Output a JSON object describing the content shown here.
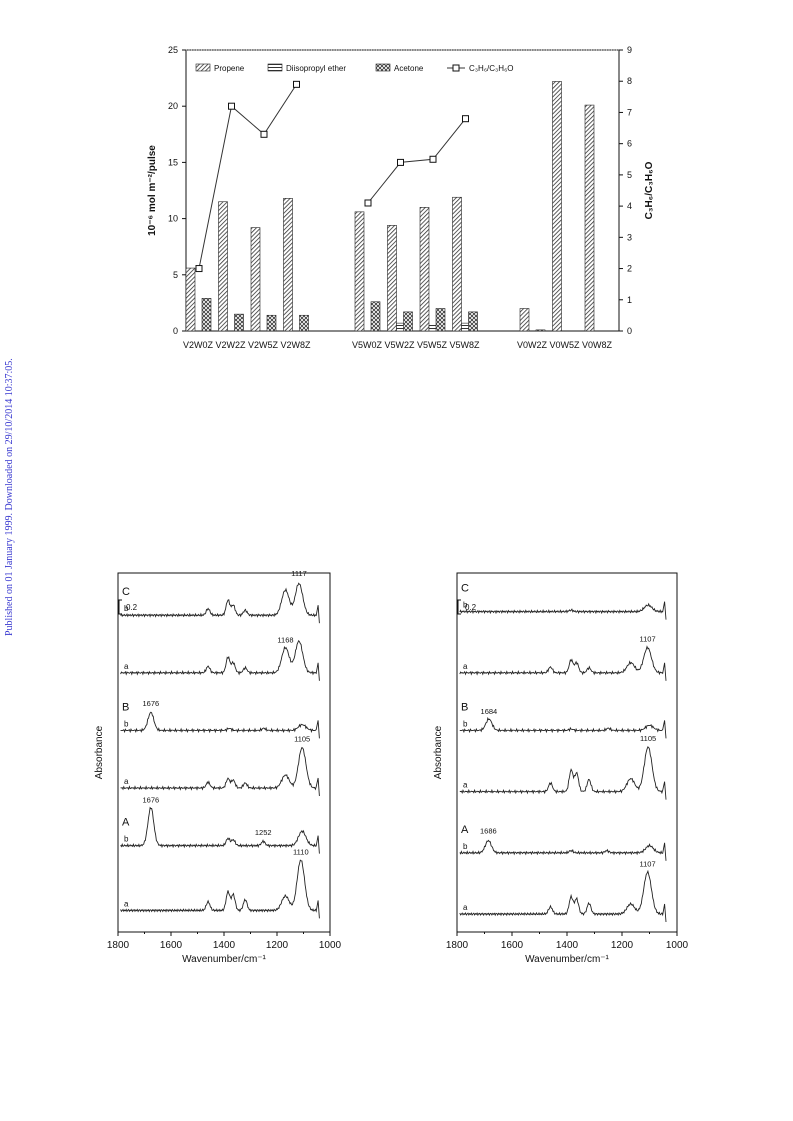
{
  "side_note": "Published on 01 January 1999. Downloaded on 29/10/2014 10:37:05.",
  "chart_data": [
    {
      "type": "bar",
      "ylabel": "10⁻⁶ mol m⁻²/pulse",
      "y2label": "C₃H₆/C₃H₆O",
      "ylim": [
        0,
        25
      ],
      "y2lim": [
        0,
        9
      ],
      "yticks": [
        "0",
        "5",
        "10",
        "15",
        "20",
        "25"
      ],
      "y2ticks": [
        "0",
        "1",
        "2",
        "3",
        "4",
        "5",
        "6",
        "7",
        "8",
        "9"
      ],
      "grid": false,
      "legend_position": "top",
      "categories": [
        "V2W0Z",
        "V2W2Z",
        "V2W5Z",
        "V2W8Z",
        "V5W0Z",
        "V5W2Z",
        "V5W5Z",
        "V5W8Z",
        "V0W2Z",
        "V0W5Z",
        "V0W8Z"
      ],
      "series": [
        {
          "name": "Propene",
          "values": [
            5.6,
            11.5,
            9.2,
            11.8,
            10.6,
            9.4,
            11.0,
            11.9,
            2.0,
            22.2,
            20.1
          ]
        },
        {
          "name": "Diisopropyl ether",
          "values": [
            0,
            0,
            0,
            0,
            0,
            0.7,
            0.5,
            0.7,
            0,
            0,
            0
          ]
        },
        {
          "name": "Acetone",
          "values": [
            2.9,
            1.5,
            1.4,
            1.4,
            2.6,
            1.7,
            2.0,
            1.7,
            0.1,
            0,
            0
          ]
        },
        {
          "name": "C₃H₆/C₃H₆O",
          "axis": "right",
          "type": "line",
          "values": [
            2.0,
            7.2,
            6.3,
            7.9,
            4.1,
            5.4,
            5.5,
            6.8,
            null,
            null,
            null
          ]
        }
      ],
      "line_groups": [
        [
          0,
          1,
          2,
          3
        ],
        [
          4,
          5,
          6,
          7
        ]
      ]
    },
    {
      "type": "line",
      "xlabel": "Wavenumber/cm⁻¹",
      "ylabel": "Absorbance",
      "xlim": [
        1800,
        1000
      ],
      "xticks": [
        "1800",
        "1600",
        "1400",
        "1200",
        "1000"
      ],
      "scale_bar": "0.2",
      "traces": [
        {
          "group": "C",
          "label": "b",
          "offset": 4.4,
          "peaks": [
            [
              1460,
              0.09
            ],
            [
              1385,
              0.21
            ],
            [
              1365,
              0.14
            ],
            [
              1320,
              0.07
            ],
            [
              1168,
              0.35
            ],
            [
              1117,
              0.44
            ]
          ]
        },
        {
          "group": "",
          "label": "a",
          "offset": 3.6,
          "peaks": [
            [
              1460,
              0.09
            ],
            [
              1385,
              0.22
            ],
            [
              1365,
              0.14
            ],
            [
              1320,
              0.07
            ],
            [
              1168,
              0.35
            ],
            [
              1117,
              0.44
            ]
          ]
        },
        {
          "group": "B",
          "label": "b",
          "offset": 2.8,
          "peaks": [
            [
              1676,
              0.25
            ],
            [
              1380,
              0.03
            ],
            [
              1250,
              0.03
            ],
            [
              1105,
              0.08
            ]
          ]
        },
        {
          "group": "",
          "label": "a",
          "offset": 2.0,
          "peaks": [
            [
              1460,
              0.08
            ],
            [
              1385,
              0.13
            ],
            [
              1365,
              0.11
            ],
            [
              1320,
              0.07
            ],
            [
              1168,
              0.18
            ],
            [
              1105,
              0.56
            ]
          ]
        },
        {
          "group": "A",
          "label": "b",
          "offset": 1.2,
          "peaks": [
            [
              1676,
              0.53
            ],
            [
              1385,
              0.1
            ],
            [
              1365,
              0.08
            ],
            [
              1252,
              0.06
            ],
            [
              1105,
              0.2
            ]
          ]
        },
        {
          "group": "",
          "label": "a",
          "offset": 0.3,
          "peaks": [
            [
              1460,
              0.12
            ],
            [
              1385,
              0.26
            ],
            [
              1365,
              0.22
            ],
            [
              1320,
              0.15
            ],
            [
              1168,
              0.2
            ],
            [
              1110,
              0.7
            ]
          ]
        }
      ],
      "annotations": [
        {
          "text": "1117",
          "x": 1117,
          "trace": 0
        },
        {
          "text": "1168",
          "x": 1168,
          "trace": 1
        },
        {
          "text": "1676",
          "x": 1676,
          "trace": 2
        },
        {
          "text": "1105",
          "x": 1105,
          "trace": 3
        },
        {
          "text": "1676",
          "x": 1676,
          "trace": 4
        },
        {
          "text": "1252",
          "x": 1252,
          "trace": 4
        },
        {
          "text": "1110",
          "x": 1110,
          "trace": 5
        }
      ]
    },
    {
      "type": "line",
      "xlabel": "Wavenumber/cm⁻¹",
      "ylabel": "Absorbance",
      "xlim": [
        1800,
        1000
      ],
      "xticks": [
        "1800",
        "1600",
        "1400",
        "1200",
        "1000"
      ],
      "scale_bar": "0.2",
      "traces": [
        {
          "group": "C",
          "label": "b",
          "offset": 4.45,
          "peaks": [
            [
              1385,
              0.02
            ],
            [
              1105,
              0.09
            ]
          ]
        },
        {
          "group": "",
          "label": "a",
          "offset": 3.6,
          "peaks": [
            [
              1460,
              0.08
            ],
            [
              1385,
              0.18
            ],
            [
              1365,
              0.14
            ],
            [
              1320,
              0.07
            ],
            [
              1168,
              0.14
            ],
            [
              1107,
              0.35
            ]
          ]
        },
        {
          "group": "B",
          "label": "b",
          "offset": 2.8,
          "peaks": [
            [
              1684,
              0.16
            ],
            [
              1385,
              0.02
            ],
            [
              1250,
              0.03
            ],
            [
              1100,
              0.07
            ]
          ]
        },
        {
          "group": "",
          "label": "a",
          "offset": 1.95,
          "peaks": [
            [
              1460,
              0.12
            ],
            [
              1385,
              0.3
            ],
            [
              1365,
              0.26
            ],
            [
              1320,
              0.17
            ],
            [
              1168,
              0.18
            ],
            [
              1105,
              0.62
            ]
          ]
        },
        {
          "group": "A",
          "label": "b",
          "offset": 1.1,
          "peaks": [
            [
              1686,
              0.17
            ],
            [
              1385,
              0.03
            ],
            [
              1255,
              0.03
            ],
            [
              1100,
              0.1
            ]
          ]
        },
        {
          "group": "",
          "label": "a",
          "offset": 0.25,
          "peaks": [
            [
              1460,
              0.1
            ],
            [
              1385,
              0.24
            ],
            [
              1365,
              0.21
            ],
            [
              1320,
              0.15
            ],
            [
              1168,
              0.14
            ],
            [
              1107,
              0.58
            ]
          ]
        }
      ],
      "annotations": [
        {
          "text": "1107",
          "x": 1107,
          "trace": 1
        },
        {
          "text": "1684",
          "x": 1684,
          "trace": 2
        },
        {
          "text": "1105",
          "x": 1105,
          "trace": 3
        },
        {
          "text": "1686",
          "x": 1686,
          "trace": 4
        },
        {
          "text": "1107",
          "x": 1107,
          "trace": 5
        }
      ]
    }
  ]
}
